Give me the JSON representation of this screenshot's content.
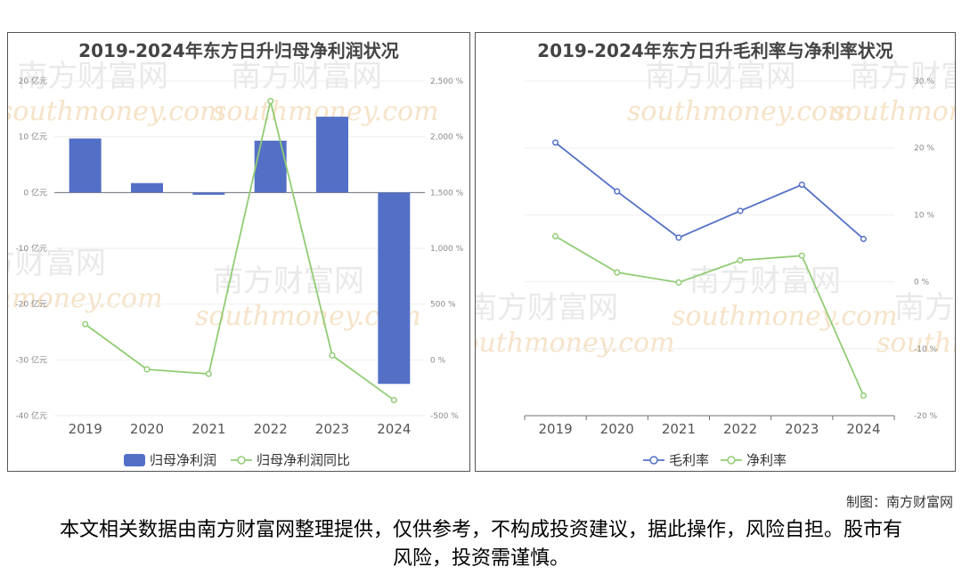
{
  "watermark": {
    "text_cn": "南方财富网",
    "text_en": "southmoney.com"
  },
  "chart_data": [
    {
      "type": "bar+line",
      "title": "2019-2024年东方日升归母净利润状况",
      "categories": [
        "2019",
        "2020",
        "2021",
        "2022",
        "2023",
        "2024"
      ],
      "series": [
        {
          "name": "归母净利润",
          "kind": "bar",
          "axis": "left",
          "color": "#5470c6",
          "values": [
            9.7,
            1.7,
            -0.4,
            9.3,
            13.6,
            -34.3
          ]
        },
        {
          "name": "归母净利润同比",
          "kind": "line",
          "axis": "right",
          "color": "#91cc75",
          "values": [
            320,
            -85,
            -125,
            2320,
            40,
            -360
          ]
        }
      ],
      "y_left": {
        "min": -40,
        "max": 20,
        "step": 10,
        "unit": " 亿元",
        "ticks": [
          "20 亿元",
          "10 亿元",
          "0 亿元",
          "-10 亿元",
          "-20 亿元",
          "-30 亿元",
          "-40 亿元"
        ]
      },
      "y_right": {
        "min": -500,
        "max": 2500,
        "step": 500,
        "ticks": [
          "2,500 %",
          "2,000 %",
          "1,500 %",
          "1,000 %",
          "500 %",
          "0 %",
          "-500 %"
        ]
      },
      "grid": true,
      "legend": "bottom"
    },
    {
      "type": "line",
      "title": "2019-2024年东方日升毛利率与净利率状况",
      "categories": [
        "2019",
        "2020",
        "2021",
        "2022",
        "2023",
        "2024"
      ],
      "series": [
        {
          "name": "毛利率",
          "color": "#5470c6",
          "values": [
            20.8,
            13.5,
            6.6,
            10.6,
            14.5,
            6.4
          ]
        },
        {
          "name": "净利率",
          "color": "#91cc75",
          "values": [
            6.8,
            1.4,
            -0.1,
            3.2,
            3.9,
            -17.0
          ]
        }
      ],
      "y_right": {
        "min": -20,
        "max": 30,
        "step": 10,
        "ticks": [
          "30 %",
          "20 %",
          "10 %",
          "0 %",
          "-10 %",
          "-20 %"
        ]
      },
      "grid": true,
      "legend": "bottom"
    }
  ],
  "footer": {
    "credit": "制图：南方财富网",
    "disclaimer": "本文相关数据由南方财富网整理提供，仅供参考，不构成投资建议，据此操作，风险自担。股市有风险，投资需谨慎。"
  }
}
